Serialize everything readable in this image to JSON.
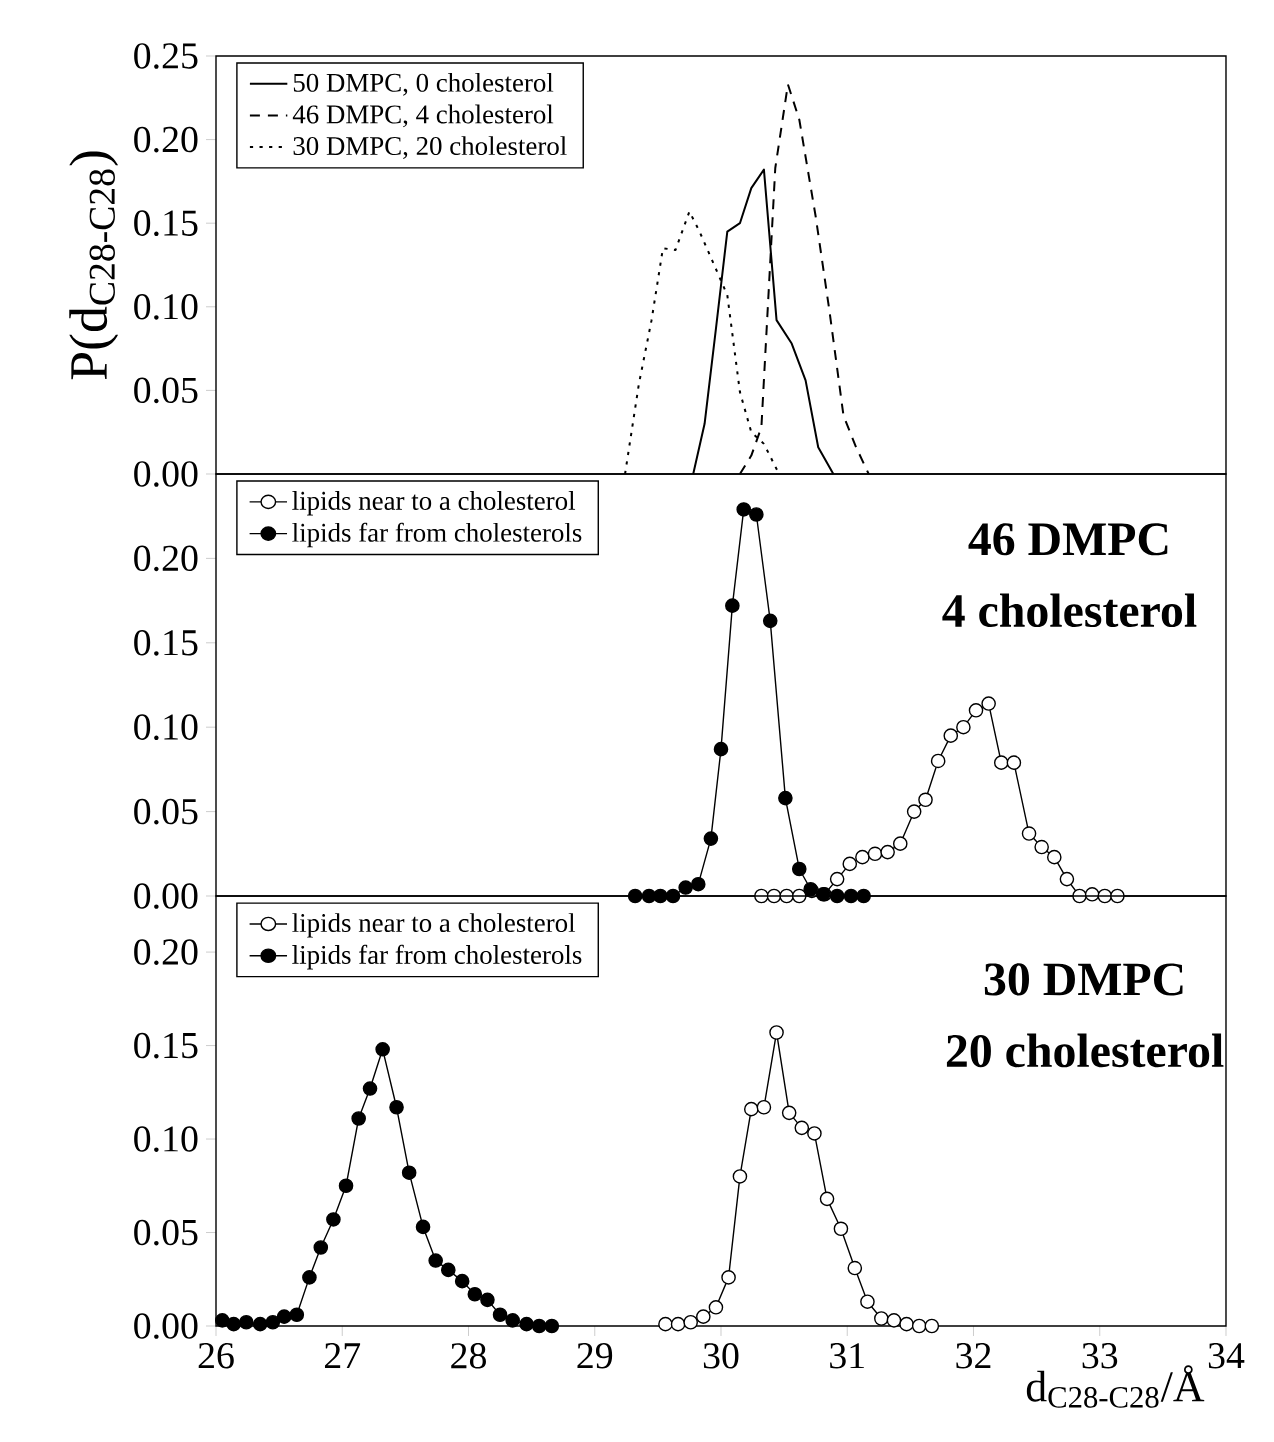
{
  "chart_data": [
    {
      "type": "line",
      "ylabel": "P(d$_{C28-C28}$)",
      "xlim": [
        26,
        34
      ],
      "ylim": [
        0,
        0.25
      ],
      "yticks": [
        {
          "value": 0,
          "label": "0.00"
        },
        0.05,
        {
          "value": 0.1,
          "label": "0.10"
        },
        0.15,
        {
          "value": 0.2,
          "label": "0.20"
        },
        0.25
      ],
      "tick_labels": "y",
      "legend": "top left",
      "series": [
        {
          "name": "50 DMPC,   0 cholesterol",
          "color": "#000000",
          "line_style": "solid",
          "x": [
            29.78,
            29.87,
            29.96,
            30.05,
            30.15,
            30.24,
            30.34,
            30.44,
            30.56,
            30.67,
            30.77,
            30.89
          ],
          "values": [
            0,
            0.03,
            0.087,
            0.145,
            0.15,
            0.171,
            0.182,
            0.092,
            0.078,
            0.056,
            0.016,
            0
          ]
        },
        {
          "name": "46 DMPC,   4 cholesterol",
          "color": "#000000",
          "line_style": "dashed",
          "x": [
            30.15,
            30.24,
            30.32,
            30.43,
            30.53,
            30.62,
            30.75,
            30.86,
            30.97,
            31.07,
            31.17
          ],
          "values": [
            0,
            0.011,
            0.028,
            0.183,
            0.233,
            0.212,
            0.154,
            0.097,
            0.035,
            0.016,
            0
          ]
        },
        {
          "name": "30 DMPC, 20 cholesterol",
          "color": "#000000",
          "line_style": "dotted",
          "x": [
            29.24,
            29.35,
            29.45,
            29.54,
            29.64,
            29.75,
            29.83,
            29.94,
            30.05,
            30.15,
            30.24,
            30.34,
            30.46
          ],
          "values": [
            0,
            0.054,
            0.092,
            0.135,
            0.134,
            0.157,
            0.145,
            0.126,
            0.107,
            0.049,
            0.025,
            0.018,
            0
          ]
        }
      ]
    },
    {
      "type": "line",
      "xlim": [
        26,
        34
      ],
      "ylim": [
        0,
        0.25
      ],
      "yticks": [
        {
          "value": 0,
          "label": "0.00"
        },
        0.05,
        {
          "value": 0.1,
          "label": "0.10"
        },
        0.15,
        {
          "value": 0.2,
          "label": "0.20"
        }
      ],
      "tick_labels": "y",
      "legend": "top left",
      "marker": "circle",
      "annotations": [
        "46 DMPC",
        "4 cholesterol"
      ],
      "series": [
        {
          "name": "lipids near to a cholesterol",
          "color": "#ffffff",
          "x": [
            30.32,
            30.42,
            30.52,
            30.62,
            30.72,
            30.82,
            30.92,
            31.02,
            31.12,
            31.22,
            31.32,
            31.42,
            31.53,
            31.62,
            31.72,
            31.82,
            31.92,
            32.02,
            32.12,
            32.22,
            32.32,
            32.44,
            32.54,
            32.64,
            32.74,
            32.84,
            32.94,
            33.04,
            33.14
          ],
          "values": [
            0,
            0,
            0,
            0,
            0.003,
            0.001,
            0.01,
            0.019,
            0.023,
            0.025,
            0.026,
            0.031,
            0.05,
            0.057,
            0.08,
            0.095,
            0.1,
            0.11,
            0.114,
            0.079,
            0.079,
            0.037,
            0.029,
            0.023,
            0.01,
            0,
            0.001,
            0,
            0
          ]
        },
        {
          "name": "lipids far from cholesterols",
          "color": "#000000",
          "x": [
            29.32,
            29.43,
            29.52,
            29.62,
            29.72,
            29.82,
            29.92,
            30.0,
            30.09,
            30.18,
            30.28,
            30.39,
            30.51,
            30.62,
            30.71,
            30.81,
            30.92,
            31.03,
            31.13
          ],
          "values": [
            0,
            0,
            0,
            0,
            0.005,
            0.007,
            0.034,
            0.087,
            0.172,
            0.229,
            0.226,
            0.163,
            0.058,
            0.016,
            0.004,
            0.001,
            0,
            0,
            0
          ]
        }
      ]
    },
    {
      "type": "line",
      "xlabel": "d$_{C28-C28}$/Å",
      "xlim": [
        26,
        34
      ],
      "ylim": [
        0,
        0.23
      ],
      "xticks": [
        26,
        27,
        28,
        29,
        30,
        31,
        32,
        33,
        34
      ],
      "yticks": [
        {
          "value": 0,
          "label": "0.00"
        },
        0.05,
        {
          "value": 0.1,
          "label": "0.10"
        },
        0.15,
        {
          "value": 0.2,
          "label": "0.20"
        }
      ],
      "legend": "top left",
      "marker": "circle",
      "annotations": [
        "30 DMPC",
        "20 cholesterol"
      ],
      "series": [
        {
          "name": "lipids near to a cholesterol",
          "color": "#ffffff",
          "x": [
            29.56,
            29.66,
            29.76,
            29.86,
            29.96,
            30.06,
            30.15,
            30.24,
            30.34,
            30.44,
            30.54,
            30.64,
            30.74,
            30.84,
            30.95,
            31.06,
            31.16,
            31.27,
            31.37,
            31.47,
            31.57,
            31.67
          ],
          "values": [
            0.001,
            0.001,
            0.002,
            0.005,
            0.01,
            0.026,
            0.08,
            0.116,
            0.117,
            0.157,
            0.114,
            0.106,
            0.103,
            0.068,
            0.052,
            0.031,
            0.013,
            0.004,
            0.003,
            0.001,
            0,
            0
          ]
        },
        {
          "name": "lipids far from cholesterols",
          "color": "#000000",
          "x": [
            26.05,
            26.14,
            26.24,
            26.35,
            26.45,
            26.54,
            26.64,
            26.74,
            26.83,
            26.93,
            27.03,
            27.13,
            27.22,
            27.32,
            27.43,
            27.53,
            27.64,
            27.74,
            27.84,
            27.95,
            28.05,
            28.15,
            28.25,
            28.35,
            28.46,
            28.56,
            28.66
          ],
          "values": [
            0.003,
            0.001,
            0.002,
            0.001,
            0.002,
            0.005,
            0.006,
            0.026,
            0.042,
            0.057,
            0.075,
            0.111,
            0.127,
            0.148,
            0.117,
            0.082,
            0.053,
            0.035,
            0.03,
            0.024,
            0.017,
            0.014,
            0.006,
            0.003,
            0.001,
            0,
            0
          ]
        }
      ]
    }
  ]
}
